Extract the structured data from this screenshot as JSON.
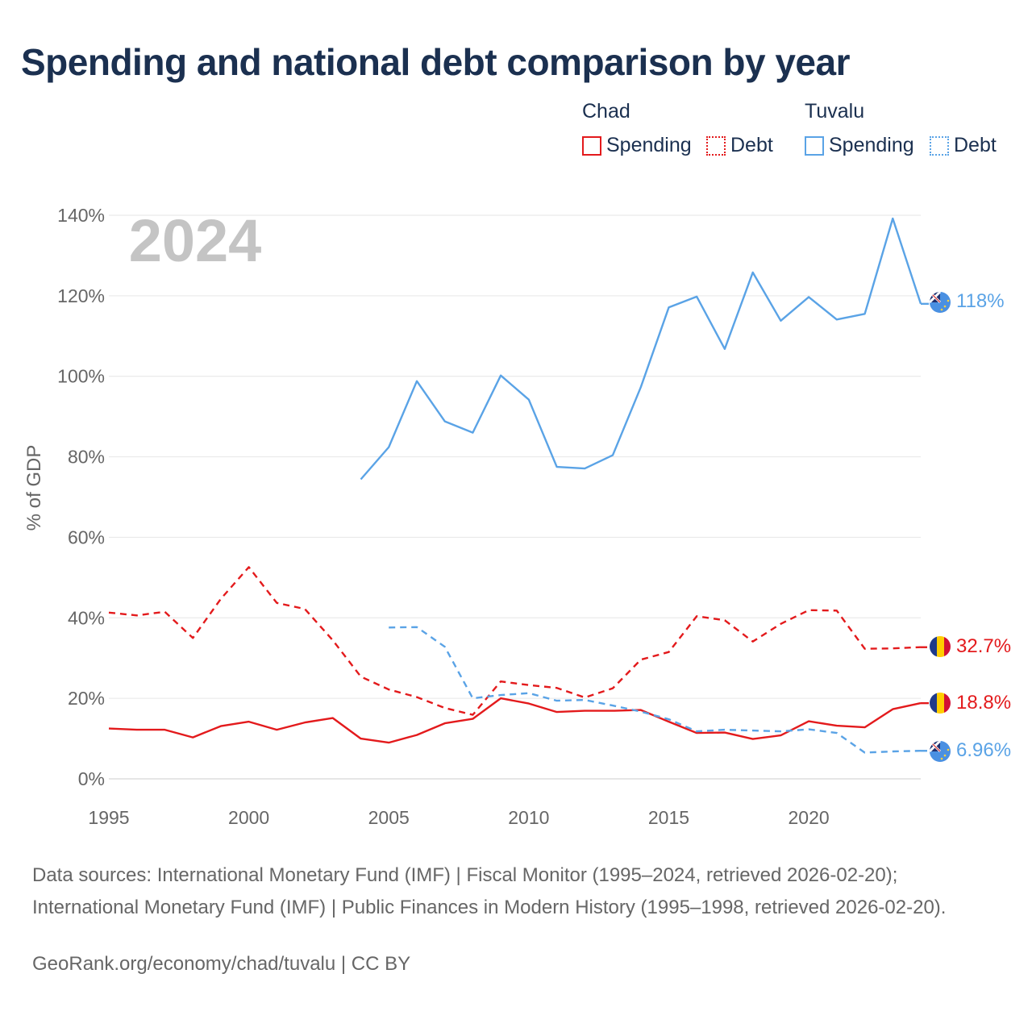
{
  "title": "Spending and national debt comparison by year",
  "legend": {
    "groups": [
      {
        "name": "Chad",
        "color": "#e31a1c",
        "spending_label": "Spending",
        "debt_label": "Debt"
      },
      {
        "name": "Tuvalu",
        "color": "#5aa3e6",
        "spending_label": "Spending",
        "debt_label": "Debt"
      }
    ]
  },
  "year_watermark": "2024",
  "end_labels": {
    "tuvalu_spending": "118%",
    "chad_debt": "32.7%",
    "chad_spending": "18.8%",
    "tuvalu_debt": "6.96%"
  },
  "footer": {
    "sources": "Data sources: International Monetary Fund (IMF) | Fiscal Monitor (1995–2024, retrieved 2026-02-20); International Monetary Fund (IMF) | Public Finances in Modern History (1995–1998, retrieved 2026-02-20).",
    "url": "GeoRank.org/economy/chad/tuvalu | CC BY"
  },
  "chart_data": {
    "type": "line",
    "title": "Spending and national debt comparison by year",
    "xlabel": "",
    "ylabel": "% of GDP",
    "xlim": [
      1995,
      2024
    ],
    "ylim": [
      0,
      140
    ],
    "x_ticks": [
      1995,
      2000,
      2005,
      2010,
      2015,
      2020
    ],
    "x_tick_labels": [
      "1995",
      "2000",
      "2005",
      "2010",
      "2015",
      "2020"
    ],
    "y_ticks": [
      0,
      20,
      40,
      60,
      80,
      100,
      120,
      140
    ],
    "y_tick_labels": [
      "0%",
      "20%",
      "40%",
      "60%",
      "80%",
      "100%",
      "120%",
      "140%"
    ],
    "grid": true,
    "series": [
      {
        "name": "Chad Spending",
        "country": "Chad",
        "measure": "Spending",
        "color": "#e31a1c",
        "dash": "solid",
        "x": [
          1995,
          1996,
          1997,
          1998,
          1999,
          2000,
          2001,
          2002,
          2003,
          2004,
          2005,
          2006,
          2007,
          2008,
          2009,
          2010,
          2011,
          2012,
          2013,
          2014,
          2015,
          2016,
          2017,
          2018,
          2019,
          2020,
          2021,
          2022,
          2023,
          2024
        ],
        "y": [
          12.5,
          12.2,
          12.2,
          10.3,
          13.1,
          14.2,
          12.2,
          14.0,
          15.1,
          10.0,
          9.0,
          10.9,
          13.8,
          14.9,
          20.0,
          18.7,
          16.6,
          16.9,
          16.9,
          17.1,
          14.2,
          11.4,
          11.5,
          9.9,
          10.8,
          14.3,
          13.2,
          12.8,
          17.3,
          18.8
        ]
      },
      {
        "name": "Chad Debt",
        "country": "Chad",
        "measure": "Debt",
        "color": "#e31a1c",
        "dash": "dashed",
        "x": [
          1995,
          1996,
          1997,
          1998,
          1999,
          2000,
          2001,
          2002,
          2003,
          2004,
          2005,
          2006,
          2007,
          2008,
          2009,
          2010,
          2011,
          2012,
          2013,
          2014,
          2015,
          2016,
          2017,
          2018,
          2019,
          2020,
          2021,
          2022,
          2023,
          2024
        ],
        "y": [
          41.3,
          40.6,
          41.5,
          35.0,
          44.7,
          52.6,
          43.7,
          42.2,
          34.4,
          25.4,
          22.2,
          20.3,
          17.6,
          15.9,
          24.2,
          23.3,
          22.6,
          20.2,
          22.5,
          29.6,
          31.5,
          40.4,
          39.4,
          34.1,
          38.5,
          41.9,
          41.8,
          32.3,
          32.4,
          32.7
        ]
      },
      {
        "name": "Tuvalu Spending",
        "country": "Tuvalu",
        "measure": "Spending",
        "color": "#5aa3e6",
        "dash": "solid",
        "x": [
          2004,
          2005,
          2006,
          2007,
          2008,
          2009,
          2010,
          2011,
          2012,
          2013,
          2014,
          2015,
          2016,
          2017,
          2018,
          2019,
          2020,
          2021,
          2022,
          2023,
          2024
        ],
        "y": [
          74.4,
          82.4,
          98.8,
          88.8,
          86.0,
          100.2,
          94.2,
          77.5,
          77.1,
          80.4,
          97.3,
          117.1,
          119.8,
          106.8,
          125.8,
          113.8,
          119.7,
          114.1,
          115.5,
          139.2,
          118.0
        ]
      },
      {
        "name": "Tuvalu Debt",
        "country": "Tuvalu",
        "measure": "Debt",
        "color": "#5aa3e6",
        "dash": "dashed",
        "x": [
          2005,
          2006,
          2007,
          2008,
          2009,
          2010,
          2011,
          2012,
          2013,
          2014,
          2015,
          2016,
          2017,
          2018,
          2019,
          2020,
          2021,
          2022,
          2023,
          2024
        ],
        "y": [
          37.6,
          37.7,
          32.8,
          20.0,
          20.8,
          21.3,
          19.4,
          19.6,
          18.2,
          16.7,
          14.8,
          11.8,
          12.2,
          12.0,
          11.8,
          12.3,
          11.4,
          6.5,
          6.8,
          6.96
        ]
      }
    ]
  }
}
